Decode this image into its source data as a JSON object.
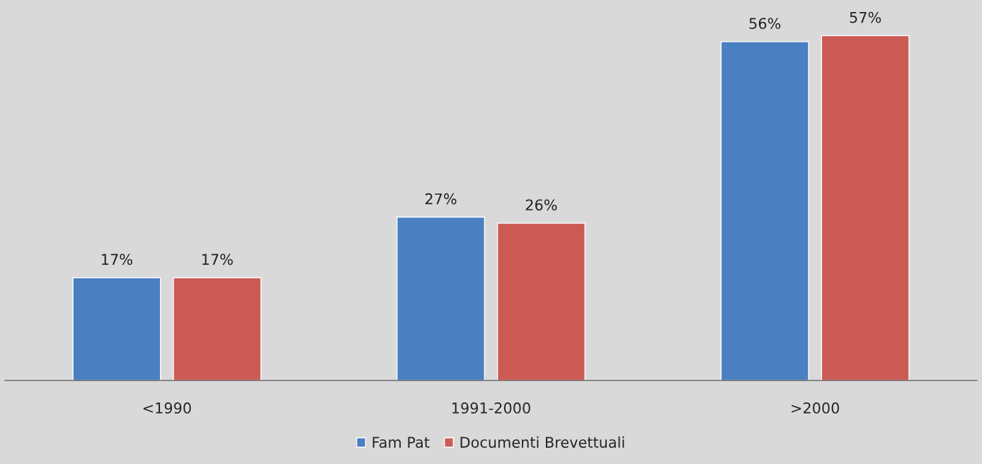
{
  "chart_data": {
    "type": "bar",
    "categories": [
      "<1990",
      "1991-2000",
      ">2000"
    ],
    "series": [
      {
        "name": "Fam Pat",
        "color": "#4a7fc1",
        "values": [
          17,
          27,
          56
        ],
        "value_labels": [
          "17%",
          "27%",
          "56%"
        ]
      },
      {
        "name": "Documenti Brevettuali",
        "color": "#cc5a55",
        "values": [
          17,
          26,
          57
        ],
        "value_labels": [
          "17%",
          "26%",
          "57%"
        ]
      }
    ],
    "legend": "bottom",
    "grid": false
  }
}
